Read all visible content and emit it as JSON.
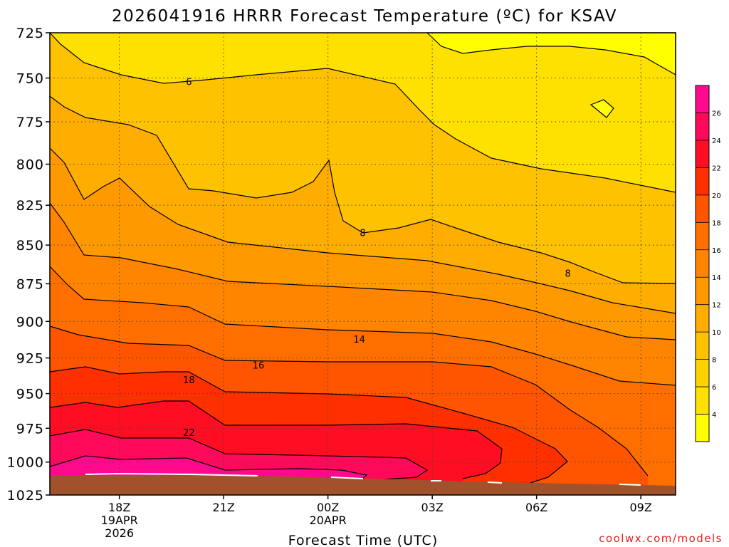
{
  "chart_data": {
    "type": "heatmap",
    "title": "2026041916 HRRR Forecast Temperature (ºC) for KSAV",
    "xlabel": "Forecast Time (UTC)",
    "ylabel": "",
    "credit": "coolwx.com/models",
    "x_ticks": [
      {
        "hour": 18,
        "label": "18Z",
        "sub": [
          "19APR",
          "2026"
        ]
      },
      {
        "hour": 21,
        "label": "21Z",
        "sub": []
      },
      {
        "hour": 24,
        "label": "00Z",
        "sub": [
          "20APR"
        ]
      },
      {
        "hour": 27,
        "label": "03Z",
        "sub": []
      },
      {
        "hour": 30,
        "label": "06Z",
        "sub": []
      },
      {
        "hour": 33,
        "label": "09Z",
        "sub": []
      }
    ],
    "xlim": [
      16,
      34
    ],
    "y_ticks": [
      725,
      750,
      775,
      800,
      825,
      850,
      875,
      900,
      925,
      950,
      975,
      1000,
      1025
    ],
    "ylim": [
      725,
      1025
    ],
    "y_scale": "log",
    "y_inverted": true,
    "grid": true,
    "colorbar": {
      "levels": [
        4,
        6,
        8,
        10,
        12,
        14,
        16,
        18,
        20,
        22,
        24,
        26
      ],
      "colors": [
        "#ffff00",
        "#ffe100",
        "#ffd300",
        "#ffc200",
        "#ffad00",
        "#ff9900",
        "#ff8500",
        "#ff6f00",
        "#ff5500",
        "#ff3000",
        "#ff0d22",
        "#ff0a5a",
        "#ff0a8c"
      ]
    },
    "contour_labels": [
      {
        "value": "6",
        "hour": 20.0,
        "p": 752
      },
      {
        "value": "8",
        "hour": 25.0,
        "p": 842
      },
      {
        "value": "8",
        "hour": 30.9,
        "p": 868
      },
      {
        "value": "14",
        "hour": 24.9,
        "p": 912
      },
      {
        "value": "16",
        "hour": 22.0,
        "p": 930
      },
      {
        "value": "18",
        "hour": 20.0,
        "p": 940
      },
      {
        "value": "22",
        "hour": 20.0,
        "p": 978
      }
    ],
    "surface_color": "#a0522d"
  }
}
